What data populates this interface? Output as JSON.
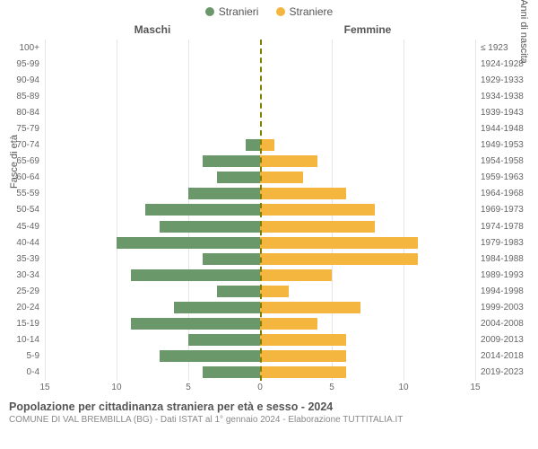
{
  "type": "population-pyramid",
  "legend": {
    "male": {
      "label": "Stranieri",
      "color": "#6b986b"
    },
    "female": {
      "label": "Straniere",
      "color": "#f4b63f"
    }
  },
  "column_headers": {
    "left": "Maschi",
    "right": "Femmine"
  },
  "y_axis_left_label": "Fasce di età",
  "y_axis_right_label": "Anni di nascita",
  "x_axis": {
    "min": 0,
    "max": 15,
    "step": 5
  },
  "x_ticks_left": [
    "15",
    "10",
    "5",
    "0"
  ],
  "x_ticks_right": [
    "0",
    "5",
    "10",
    "15"
  ],
  "centerline_color": "#808000",
  "grid_color": "#e5e5e5",
  "background_color": "#ffffff",
  "label_fontsize": 10,
  "header_fontsize": 12,
  "rows": [
    {
      "age": "100+",
      "birth": "≤ 1923",
      "m": 0,
      "f": 0
    },
    {
      "age": "95-99",
      "birth": "1924-1928",
      "m": 0,
      "f": 0
    },
    {
      "age": "90-94",
      "birth": "1929-1933",
      "m": 0,
      "f": 0
    },
    {
      "age": "85-89",
      "birth": "1934-1938",
      "m": 0,
      "f": 0
    },
    {
      "age": "80-84",
      "birth": "1939-1943",
      "m": 0,
      "f": 0
    },
    {
      "age": "75-79",
      "birth": "1944-1948",
      "m": 0,
      "f": 0
    },
    {
      "age": "70-74",
      "birth": "1949-1953",
      "m": 1,
      "f": 1
    },
    {
      "age": "65-69",
      "birth": "1954-1958",
      "m": 4,
      "f": 4
    },
    {
      "age": "60-64",
      "birth": "1959-1963",
      "m": 3,
      "f": 3
    },
    {
      "age": "55-59",
      "birth": "1964-1968",
      "m": 5,
      "f": 6
    },
    {
      "age": "50-54",
      "birth": "1969-1973",
      "m": 8,
      "f": 8
    },
    {
      "age": "45-49",
      "birth": "1974-1978",
      "m": 7,
      "f": 8
    },
    {
      "age": "40-44",
      "birth": "1979-1983",
      "m": 10,
      "f": 11
    },
    {
      "age": "35-39",
      "birth": "1984-1988",
      "m": 4,
      "f": 11
    },
    {
      "age": "30-34",
      "birth": "1989-1993",
      "m": 9,
      "f": 5
    },
    {
      "age": "25-29",
      "birth": "1994-1998",
      "m": 3,
      "f": 2
    },
    {
      "age": "20-24",
      "birth": "1999-2003",
      "m": 6,
      "f": 7
    },
    {
      "age": "15-19",
      "birth": "2004-2008",
      "m": 9,
      "f": 4
    },
    {
      "age": "10-14",
      "birth": "2009-2013",
      "m": 5,
      "f": 6
    },
    {
      "age": "5-9",
      "birth": "2014-2018",
      "m": 7,
      "f": 6
    },
    {
      "age": "0-4",
      "birth": "2019-2023",
      "m": 4,
      "f": 6
    }
  ],
  "footer": {
    "title": "Popolazione per cittadinanza straniera per età e sesso - 2024",
    "subtitle": "COMUNE DI VAL BREMBILLA (BG) - Dati ISTAT al 1° gennaio 2024 - Elaborazione TUTTITALIA.IT"
  }
}
